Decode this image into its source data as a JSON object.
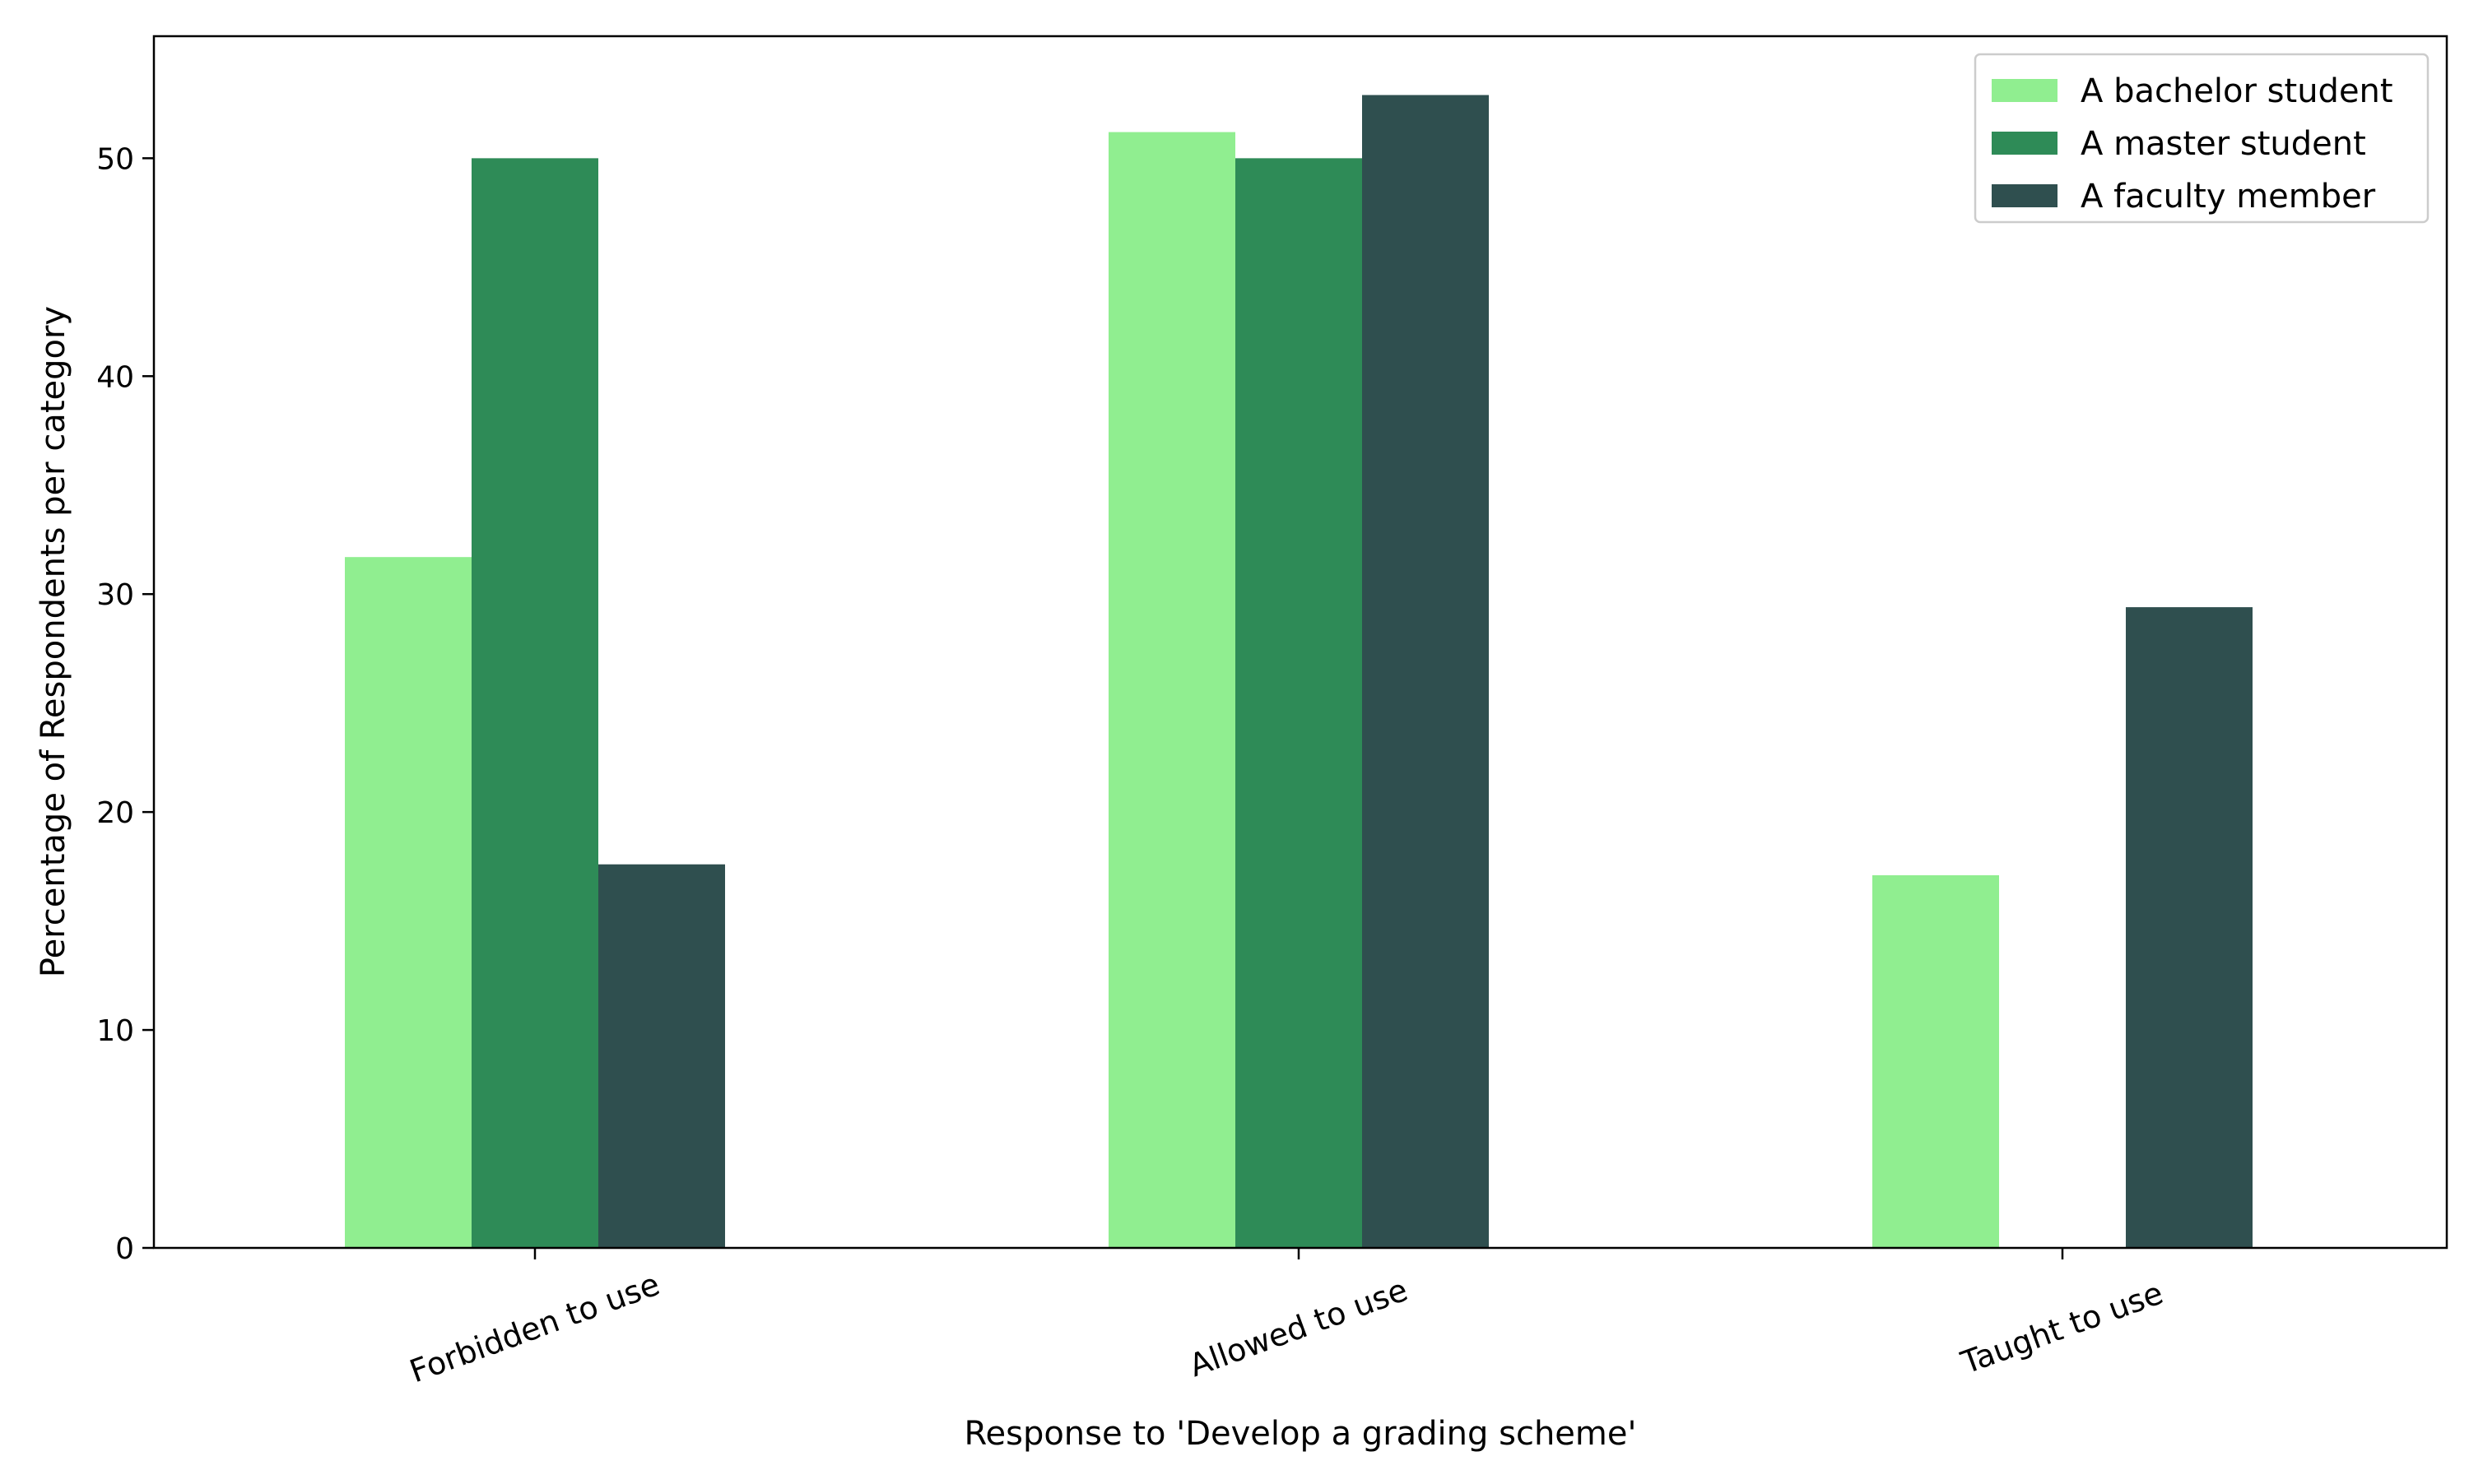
{
  "chart_data": {
    "type": "bar",
    "title": "",
    "xlabel": "Response to 'Develop a grading scheme'",
    "ylabel": "Percentage of Respondents per category",
    "categories": [
      "Forbidden to use",
      "Allowed to use",
      "Taught to use"
    ],
    "series": [
      {
        "name": "A bachelor student",
        "color": "#90ee90",
        "values": [
          31.7,
          51.2,
          17.1
        ]
      },
      {
        "name": "A master student",
        "color": "#2e8b57",
        "values": [
          50.0,
          50.0,
          0
        ]
      },
      {
        "name": "A faculty member",
        "color": "#2f4f4f",
        "values": [
          17.6,
          52.9,
          29.4
        ]
      }
    ],
    "ylim": [
      0,
      55.6
    ],
    "yticks": [
      "0",
      "10",
      "20",
      "30",
      "40",
      "50"
    ],
    "ytick_values": [
      0,
      10,
      20,
      30,
      40,
      50
    ],
    "grid": false,
    "legend_position": "top-right"
  }
}
